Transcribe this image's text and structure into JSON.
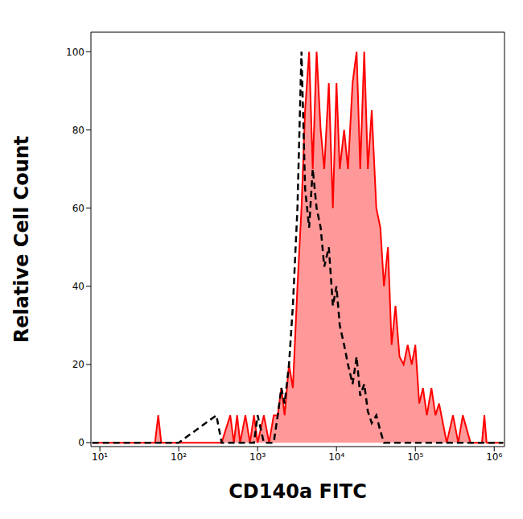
{
  "chart_data": {
    "type": "area",
    "x_label": "CD140a FITC",
    "y_label": "Relative Cell Count",
    "log": "x",
    "xlim": [
      7.7,
      1350000
    ],
    "xticks": [
      {
        "value": 10,
        "label": "10¹"
      },
      {
        "value": 100,
        "label": "10²"
      },
      {
        "value": 1000,
        "label": "10³"
      },
      {
        "value": 10000,
        "label": "10⁴"
      },
      {
        "value": 100000,
        "label": "10⁵"
      },
      {
        "value": 1000000,
        "label": "10⁶"
      }
    ],
    "ylim": [
      -1,
      105
    ],
    "yticks": [
      0,
      20,
      40,
      60,
      80,
      100
    ],
    "grid": false,
    "x": [
      8,
      50,
      55,
      60,
      65,
      100,
      300,
      350,
      450,
      500,
      550,
      600,
      700,
      800,
      900,
      1000,
      1200,
      1400,
      1600,
      1800,
      2000,
      2200,
      2500,
      2800,
      3200,
      3600,
      4000,
      4500,
      5000,
      5600,
      6300,
      7000,
      8000,
      9000,
      10000,
      11000,
      12500,
      14000,
      16000,
      18000,
      20000,
      22500,
      25000,
      28000,
      32000,
      36000,
      40000,
      45000,
      50000,
      56000,
      63000,
      71000,
      80000,
      90000,
      100000,
      112000,
      125000,
      140000,
      160000,
      180000,
      200000,
      250000,
      300000,
      350000,
      400000,
      500000,
      700000,
      750000,
      800000,
      1000000,
      1300000
    ],
    "series": [
      {
        "type": "area",
        "color": "#ff0000",
        "line_style": "solid",
        "values": [
          0,
          0,
          7,
          0,
          0,
          0,
          0,
          0,
          7,
          0,
          7,
          0,
          7,
          0,
          7,
          0,
          7,
          0,
          7,
          7,
          14,
          7,
          20,
          14,
          40,
          60,
          85,
          100,
          70,
          100,
          80,
          70,
          92,
          60,
          92,
          70,
          80,
          70,
          92,
          100,
          70,
          100,
          70,
          85,
          60,
          55,
          40,
          50,
          25,
          35,
          22,
          20,
          25,
          20,
          25,
          10,
          14,
          7,
          14,
          7,
          10,
          0,
          7,
          0,
          7,
          0,
          0,
          7,
          0,
          0,
          0
        ]
      },
      {
        "type": "line",
        "color": "#000000",
        "line_style": "dashed",
        "values": [
          0,
          0,
          0,
          0,
          0,
          0,
          7,
          0,
          0,
          0,
          0,
          0,
          0,
          0,
          0,
          7,
          0,
          0,
          0,
          7,
          14,
          10,
          20,
          35,
          60,
          100,
          65,
          55,
          70,
          60,
          55,
          45,
          50,
          35,
          40,
          30,
          25,
          20,
          15,
          22,
          12,
          15,
          8,
          5,
          7,
          3,
          0,
          0,
          0,
          0,
          0,
          0,
          0,
          0,
          0,
          0,
          0,
          0,
          0,
          0,
          0,
          0,
          0,
          0,
          0,
          0,
          0,
          0,
          0,
          0,
          0
        ]
      }
    ]
  }
}
